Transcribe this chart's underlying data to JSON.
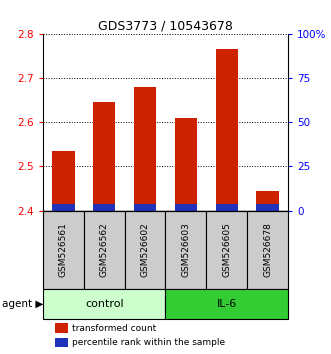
{
  "title": "GDS3773 / 10543678",
  "samples": [
    "GSM526561",
    "GSM526562",
    "GSM526602",
    "GSM526603",
    "GSM526605",
    "GSM526678"
  ],
  "red_values": [
    2.535,
    2.645,
    2.68,
    2.61,
    2.765,
    2.445
  ],
  "blue_top": [
    2.415,
    2.415,
    2.415,
    2.415,
    2.415,
    2.415
  ],
  "base": 2.4,
  "ylim": [
    2.4,
    2.8
  ],
  "yticks_left": [
    2.4,
    2.5,
    2.6,
    2.7,
    2.8
  ],
  "yticks_right": [
    0,
    25,
    50,
    75,
    100
  ],
  "ytick_labels_right": [
    "0",
    "25",
    "50",
    "75",
    "100%"
  ],
  "bar_width": 0.55,
  "red_color": "#cc2200",
  "blue_color": "#2233bb",
  "control_color": "#ccffcc",
  "il6_color": "#33cc33",
  "sample_bg_color": "#cccccc",
  "legend_red": "transformed count",
  "legend_blue": "percentile rank within the sample",
  "agent_label": "agent",
  "control_label": "control",
  "il6_label": "IL-6",
  "n_control": 3,
  "n_il6": 3
}
